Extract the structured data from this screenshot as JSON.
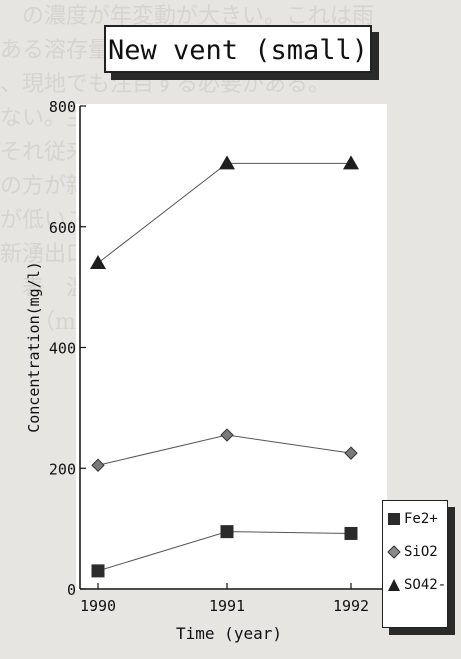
{
  "chart_data": {
    "type": "line",
    "title": "New vent (small)",
    "xlabel": "Time (year)",
    "ylabel": "Concentration(mg/l)",
    "categories": [
      "1990",
      "1991",
      "1992"
    ],
    "ylim": [
      0,
      800
    ],
    "yticks": [
      "0",
      "200",
      "400",
      "600",
      "800"
    ],
    "grid": false,
    "legend_position": "right",
    "series": [
      {
        "name": "Fe2+",
        "values": [
          30,
          95,
          92
        ],
        "marker": "square",
        "color": "#2b2b2b"
      },
      {
        "name": "SiO2",
        "values": [
          205,
          255,
          225
        ],
        "marker": "diamond",
        "color": "#7a7a7a"
      },
      {
        "name": "SO42-",
        "values": [
          540,
          705,
          705
        ],
        "marker": "triangle",
        "color": "#1e1e1e"
      }
    ]
  }
}
